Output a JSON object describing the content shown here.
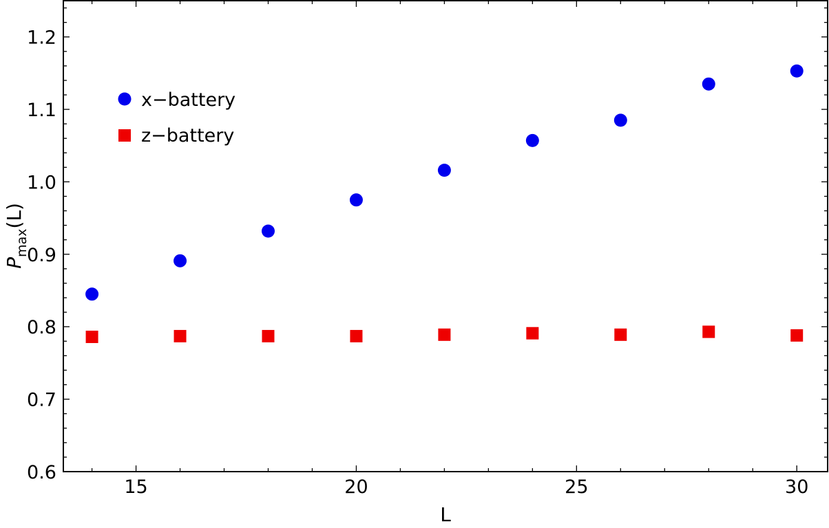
{
  "chart_data": {
    "type": "scatter",
    "xlabel": "L",
    "ylabel": {
      "main": "P",
      "subscript": "max",
      "suffix": "(L)"
    },
    "xlim": [
      13.35,
      30.7
    ],
    "ylim": [
      0.6,
      1.25
    ],
    "x_ticks": [
      15,
      20,
      25,
      30
    ],
    "y_ticks": [
      0.6,
      0.7,
      0.8,
      0.9,
      1.0,
      1.1,
      1.2
    ],
    "x_tick_labels": [
      "15",
      "20",
      "25",
      "30"
    ],
    "y_tick_labels": [
      "0.6",
      "0.7",
      "0.8",
      "0.9",
      "1.0",
      "1.1",
      "1.2"
    ],
    "x_minor_step": 1,
    "y_minor_step": 0.02,
    "legend_position": "top-left",
    "grid": false,
    "series": [
      {
        "name": "x−battery",
        "marker": "circle",
        "color": "#0000ee",
        "x": [
          14,
          16,
          18,
          20,
          22,
          24,
          26,
          28,
          30
        ],
        "y": [
          0.845,
          0.891,
          0.932,
          0.975,
          1.016,
          1.057,
          1.085,
          1.135,
          1.153
        ]
      },
      {
        "name": "z−battery",
        "marker": "square",
        "color": "#ee0000",
        "x": [
          14,
          16,
          18,
          20,
          22,
          24,
          26,
          28,
          30
        ],
        "y": [
          0.786,
          0.787,
          0.787,
          0.787,
          0.789,
          0.791,
          0.789,
          0.793,
          0.788
        ]
      }
    ]
  }
}
